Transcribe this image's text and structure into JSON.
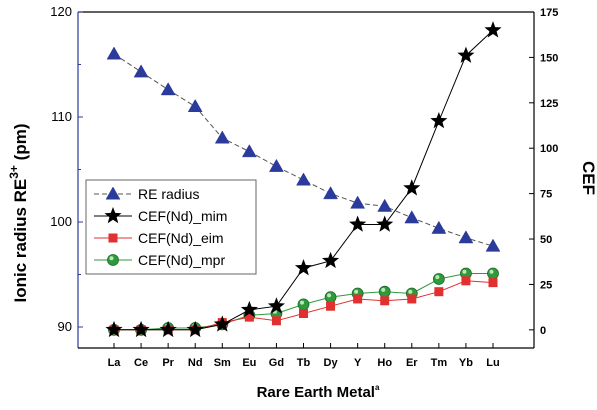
{
  "chart_data": {
    "type": "line",
    "categories": [
      "La",
      "Ce",
      "Pr",
      "Nd",
      "Sm",
      "Eu",
      "Gd",
      "Tb",
      "Dy",
      "Y",
      "Ho",
      "Er",
      "Tm",
      "Yb",
      "Lu"
    ],
    "xlabel": "Rare Earth Metal",
    "xlabel_sup": "a",
    "ylabel_left_main": "Ionic radius RE",
    "ylabel_left_sup": "3+",
    "ylabel_left_unit": " (pm)",
    "ylabel_right": "CEF",
    "left_axis": {
      "min": 88,
      "max": 120,
      "ticks": [
        90,
        100,
        110,
        120
      ]
    },
    "right_axis": {
      "min": -10,
      "max": 175,
      "ticks": [
        0,
        25,
        50,
        75,
        100,
        125,
        150,
        175
      ]
    },
    "series": [
      {
        "name": "RE radius",
        "axis": "left",
        "color": "#2a3b9c",
        "marker": "triangle",
        "line": "dashed",
        "values": [
          116.0,
          114.3,
          112.6,
          111.0,
          108.0,
          106.7,
          105.3,
          104.0,
          102.7,
          101.8,
          101.5,
          100.4,
          99.4,
          98.5,
          97.7
        ]
      },
      {
        "name": "CEF(Nd)_mim",
        "axis": "right",
        "color": "#000000",
        "marker": "star",
        "line": "solid",
        "values": [
          0,
          0,
          0,
          0,
          3,
          11,
          13,
          34,
          38,
          58,
          58,
          78,
          115,
          151,
          165
        ]
      },
      {
        "name": "CEF(Nd)_eim",
        "axis": "right",
        "color": "#e03030",
        "marker": "square",
        "line": "solid",
        "values": [
          0,
          0,
          0,
          0,
          4,
          7,
          5,
          9,
          13,
          17,
          16,
          17,
          21,
          27,
          26
        ]
      },
      {
        "name": "CEF(Nd)_mpr",
        "axis": "right",
        "color": "#2f9a3c",
        "marker": "circle",
        "line": "solid",
        "values": [
          0,
          0,
          1,
          1,
          3,
          8,
          9,
          14,
          18,
          20,
          21,
          20,
          28,
          31,
          31
        ]
      }
    ],
    "legend_position": "center-left",
    "grid": false
  }
}
